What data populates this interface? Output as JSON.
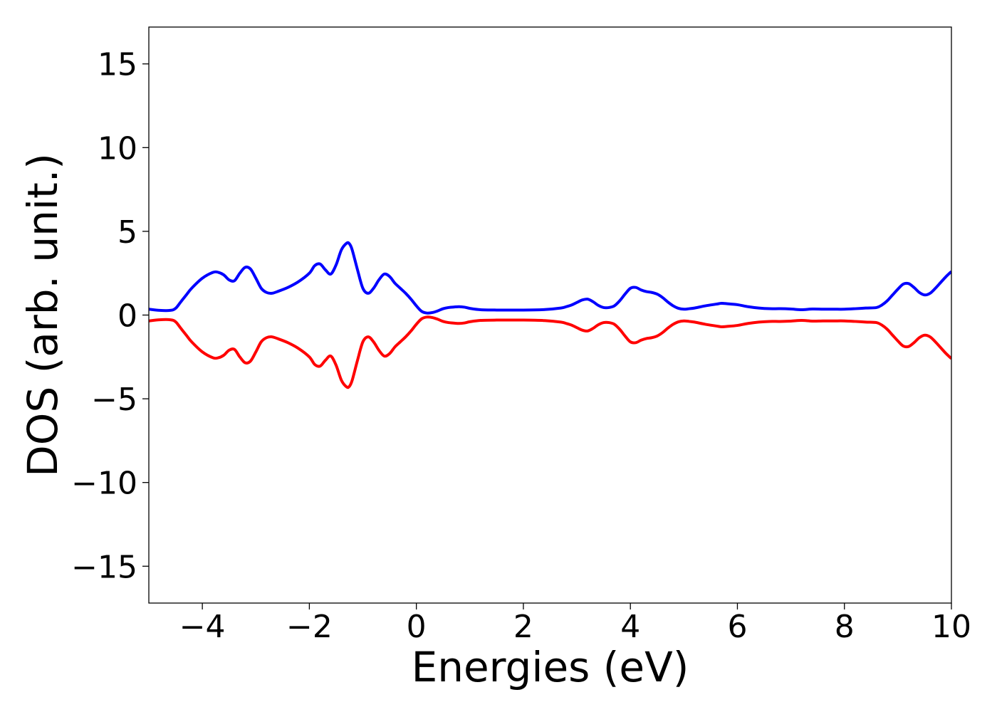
{
  "chart_data": {
    "type": "line",
    "xlabel": "Energies (eV)",
    "ylabel": "DOS (arb. unit.)",
    "xlim": [
      -5,
      10
    ],
    "ylim": [
      -17.2,
      17.2
    ],
    "xticks": [
      -4,
      -2,
      0,
      2,
      4,
      6,
      8,
      10
    ],
    "yticks": [
      -15,
      -10,
      -5,
      0,
      5,
      10,
      15
    ],
    "xtick_labels": [
      "−4",
      "−2",
      "0",
      "2",
      "4",
      "6",
      "8",
      "10"
    ],
    "ytick_labels": [
      "−15",
      "−10",
      "−5",
      "0",
      "5",
      "10",
      "15"
    ],
    "grid": false,
    "series": [
      {
        "color": "#0000ff",
        "x": [
          -5.0,
          -4.8,
          -4.6,
          -4.5,
          -4.4,
          -4.3,
          -4.2,
          -4.0,
          -3.8,
          -3.7,
          -3.6,
          -3.5,
          -3.4,
          -3.3,
          -3.2,
          -3.1,
          -3.0,
          -2.9,
          -2.8,
          -2.7,
          -2.6,
          -2.4,
          -2.2,
          -2.0,
          -1.9,
          -1.8,
          -1.7,
          -1.6,
          -1.5,
          -1.4,
          -1.3,
          -1.25,
          -1.2,
          -1.1,
          -1.0,
          -0.9,
          -0.8,
          -0.7,
          -0.6,
          -0.5,
          -0.4,
          -0.3,
          -0.2,
          -0.1,
          0.0,
          0.1,
          0.2,
          0.3,
          0.4,
          0.5,
          0.6,
          0.7,
          0.8,
          0.9,
          1.0,
          1.2,
          1.5,
          2.0,
          2.4,
          2.7,
          2.8,
          2.9,
          3.0,
          3.1,
          3.2,
          3.3,
          3.4,
          3.5,
          3.6,
          3.7,
          3.8,
          3.9,
          4.0,
          4.1,
          4.2,
          4.3,
          4.4,
          4.5,
          4.6,
          4.7,
          4.8,
          4.9,
          5.0,
          5.1,
          5.2,
          5.4,
          5.6,
          5.7,
          5.8,
          6.0,
          6.2,
          6.4,
          6.6,
          6.8,
          7.0,
          7.2,
          7.4,
          7.6,
          7.8,
          8.0,
          8.2,
          8.4,
          8.6,
          8.7,
          8.8,
          8.9,
          9.0,
          9.1,
          9.2,
          9.3,
          9.4,
          9.5,
          9.6,
          9.7,
          9.8,
          9.9,
          10.0
        ],
        "values": [
          0.35,
          0.28,
          0.28,
          0.4,
          0.8,
          1.2,
          1.6,
          2.2,
          2.55,
          2.55,
          2.4,
          2.1,
          2.05,
          2.5,
          2.85,
          2.75,
          2.2,
          1.6,
          1.35,
          1.3,
          1.4,
          1.65,
          2.0,
          2.5,
          2.95,
          3.05,
          2.7,
          2.45,
          3.0,
          3.9,
          4.3,
          4.25,
          3.9,
          2.7,
          1.6,
          1.3,
          1.6,
          2.1,
          2.45,
          2.3,
          1.9,
          1.6,
          1.3,
          0.95,
          0.55,
          0.22,
          0.12,
          0.15,
          0.25,
          0.38,
          0.45,
          0.48,
          0.5,
          0.47,
          0.4,
          0.32,
          0.3,
          0.3,
          0.33,
          0.42,
          0.5,
          0.6,
          0.75,
          0.9,
          0.95,
          0.8,
          0.58,
          0.45,
          0.45,
          0.55,
          0.85,
          1.25,
          1.6,
          1.65,
          1.5,
          1.4,
          1.35,
          1.25,
          1.05,
          0.78,
          0.55,
          0.4,
          0.35,
          0.38,
          0.42,
          0.55,
          0.65,
          0.7,
          0.68,
          0.62,
          0.5,
          0.42,
          0.38,
          0.38,
          0.36,
          0.32,
          0.36,
          0.35,
          0.35,
          0.35,
          0.38,
          0.42,
          0.45,
          0.6,
          0.85,
          1.2,
          1.55,
          1.85,
          1.88,
          1.65,
          1.35,
          1.2,
          1.3,
          1.6,
          1.95,
          2.3,
          2.6
        ]
      },
      {
        "color": "#ff0000",
        "mirror_of_series": 0,
        "x": [
          -5.0,
          -4.8,
          -4.6,
          -4.5,
          -4.4,
          -4.3,
          -4.2,
          -4.0,
          -3.8,
          -3.7,
          -3.6,
          -3.5,
          -3.4,
          -3.3,
          -3.2,
          -3.1,
          -3.0,
          -2.9,
          -2.8,
          -2.7,
          -2.6,
          -2.4,
          -2.2,
          -2.0,
          -1.9,
          -1.8,
          -1.7,
          -1.6,
          -1.5,
          -1.4,
          -1.3,
          -1.25,
          -1.2,
          -1.1,
          -1.0,
          -0.9,
          -0.8,
          -0.7,
          -0.6,
          -0.5,
          -0.4,
          -0.3,
          -0.2,
          -0.1,
          0.0,
          0.1,
          0.2,
          0.3,
          0.4,
          0.5,
          0.6,
          0.7,
          0.8,
          0.9,
          1.0,
          1.2,
          1.5,
          2.0,
          2.4,
          2.7,
          2.8,
          2.9,
          3.0,
          3.1,
          3.2,
          3.3,
          3.4,
          3.5,
          3.6,
          3.7,
          3.8,
          3.9,
          4.0,
          4.1,
          4.2,
          4.3,
          4.4,
          4.5,
          4.6,
          4.7,
          4.8,
          4.9,
          5.0,
          5.1,
          5.2,
          5.4,
          5.6,
          5.7,
          5.8,
          6.0,
          6.2,
          6.4,
          6.6,
          6.8,
          7.0,
          7.2,
          7.4,
          7.6,
          7.8,
          8.0,
          8.2,
          8.4,
          8.6,
          8.7,
          8.8,
          8.9,
          9.0,
          9.1,
          9.2,
          9.3,
          9.4,
          9.5,
          9.6,
          9.7,
          9.8,
          9.9,
          10.0
        ],
        "values": [
          -0.35,
          -0.28,
          -0.28,
          -0.4,
          -0.8,
          -1.2,
          -1.6,
          -2.2,
          -2.55,
          -2.55,
          -2.4,
          -2.1,
          -2.05,
          -2.5,
          -2.85,
          -2.75,
          -2.2,
          -1.6,
          -1.35,
          -1.3,
          -1.4,
          -1.65,
          -2.0,
          -2.5,
          -2.95,
          -3.05,
          -2.7,
          -2.45,
          -3.0,
          -3.9,
          -4.3,
          -4.25,
          -3.9,
          -2.7,
          -1.6,
          -1.3,
          -1.6,
          -2.1,
          -2.45,
          -2.3,
          -1.9,
          -1.6,
          -1.3,
          -0.95,
          -0.55,
          -0.22,
          -0.12,
          -0.15,
          -0.25,
          -0.38,
          -0.45,
          -0.48,
          -0.5,
          -0.47,
          -0.4,
          -0.32,
          -0.3,
          -0.3,
          -0.33,
          -0.42,
          -0.5,
          -0.6,
          -0.75,
          -0.9,
          -0.95,
          -0.8,
          -0.58,
          -0.45,
          -0.45,
          -0.55,
          -0.85,
          -1.25,
          -1.6,
          -1.65,
          -1.5,
          -1.4,
          -1.35,
          -1.25,
          -1.05,
          -0.78,
          -0.55,
          -0.4,
          -0.35,
          -0.38,
          -0.42,
          -0.55,
          -0.65,
          -0.7,
          -0.68,
          -0.62,
          -0.5,
          -0.42,
          -0.38,
          -0.38,
          -0.36,
          -0.32,
          -0.36,
          -0.35,
          -0.35,
          -0.35,
          -0.38,
          -0.42,
          -0.45,
          -0.6,
          -0.85,
          -1.2,
          -1.55,
          -1.85,
          -1.88,
          -1.65,
          -1.35,
          -1.2,
          -1.3,
          -1.6,
          -1.95,
          -2.3,
          -2.6
        ]
      }
    ]
  }
}
